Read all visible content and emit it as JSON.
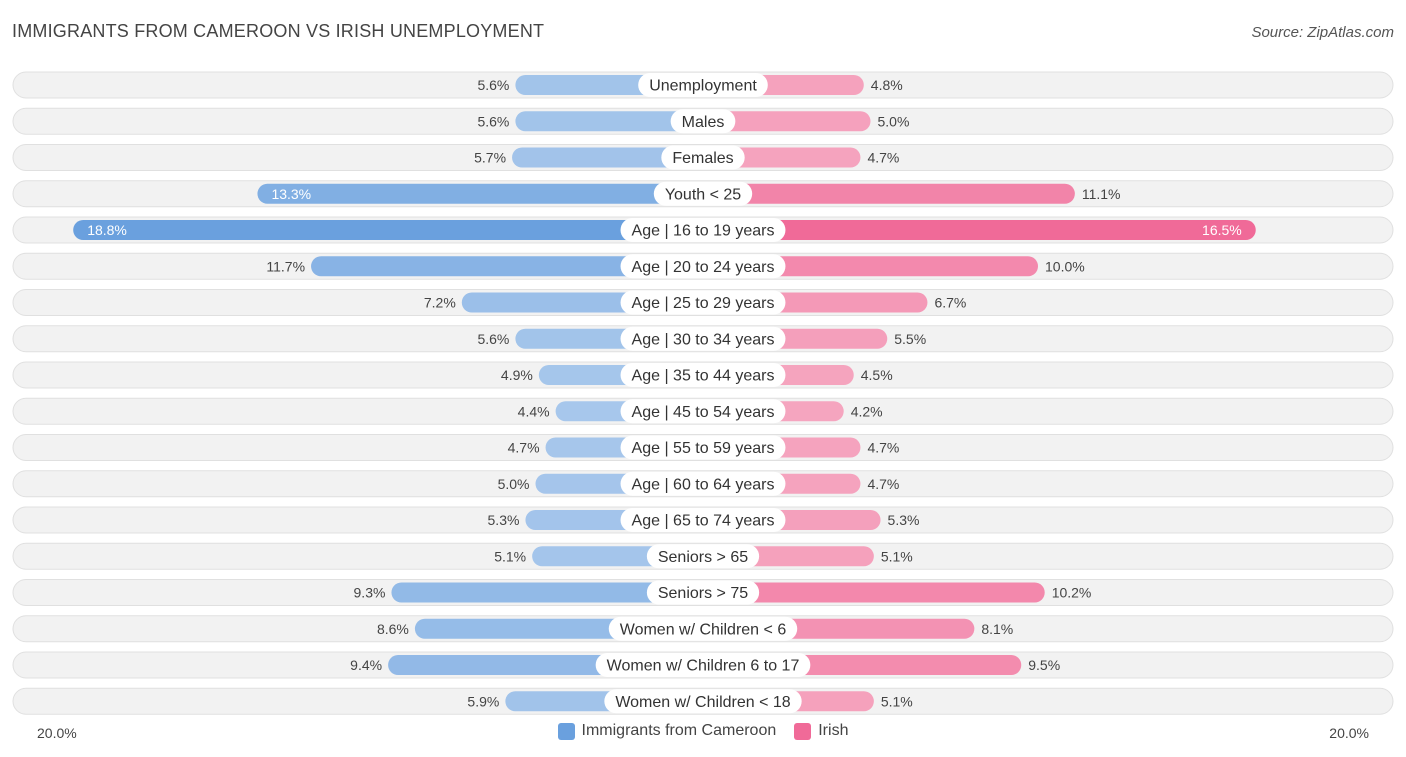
{
  "title": "IMMIGRANTS FROM CAMEROON VS IRISH UNEMPLOYMENT",
  "source": "Source: ZipAtlas.com",
  "colors": {
    "left_strong": "#6aa0de",
    "left_light": "#a9c8ec",
    "right_strong": "#f06a98",
    "right_light": "#f5a6c0"
  },
  "chart_data": {
    "type": "bar",
    "orientation": "horizontal-diverging",
    "title": "IMMIGRANTS FROM CAMEROON VS IRISH UNEMPLOYMENT",
    "xlim": [
      -20,
      20
    ],
    "axis_min_label": "20.0%",
    "axis_max_label": "20.0%",
    "categories": [
      "Unemployment",
      "Males",
      "Females",
      "Youth < 25",
      "Age | 16 to 19 years",
      "Age | 20 to 24 years",
      "Age | 25 to 29 years",
      "Age | 30 to 34 years",
      "Age | 35 to 44 years",
      "Age | 45 to 54 years",
      "Age | 55 to 59 years",
      "Age | 60 to 64 years",
      "Age | 65 to 74 years",
      "Seniors > 65",
      "Seniors > 75",
      "Women w/ Children < 6",
      "Women w/ Children 6 to 17",
      "Women w/ Children < 18"
    ],
    "series": [
      {
        "name": "Immigrants from Cameroon",
        "values": [
          5.6,
          5.6,
          5.7,
          13.3,
          18.8,
          11.7,
          7.2,
          5.6,
          4.9,
          4.4,
          4.7,
          5.0,
          5.3,
          5.1,
          9.3,
          8.6,
          9.4,
          5.9
        ],
        "labels": [
          "5.6%",
          "5.6%",
          "5.7%",
          "13.3%",
          "18.8%",
          "11.7%",
          "7.2%",
          "5.6%",
          "4.9%",
          "4.4%",
          "4.7%",
          "5.0%",
          "5.3%",
          "5.1%",
          "9.3%",
          "8.6%",
          "9.4%",
          "5.9%"
        ]
      },
      {
        "name": "Irish",
        "values": [
          4.8,
          5.0,
          4.7,
          11.1,
          16.5,
          10.0,
          6.7,
          5.5,
          4.5,
          4.2,
          4.7,
          4.7,
          5.3,
          5.1,
          10.2,
          8.1,
          9.5,
          5.1
        ],
        "labels": [
          "4.8%",
          "5.0%",
          "4.7%",
          "11.1%",
          "16.5%",
          "10.0%",
          "6.7%",
          "5.5%",
          "4.5%",
          "4.2%",
          "4.7%",
          "4.7%",
          "5.3%",
          "5.1%",
          "10.2%",
          "8.1%",
          "9.5%",
          "5.1%"
        ]
      }
    ],
    "legend": [
      "Immigrants from Cameroon",
      "Irish"
    ],
    "legend_position": "bottom-center"
  }
}
